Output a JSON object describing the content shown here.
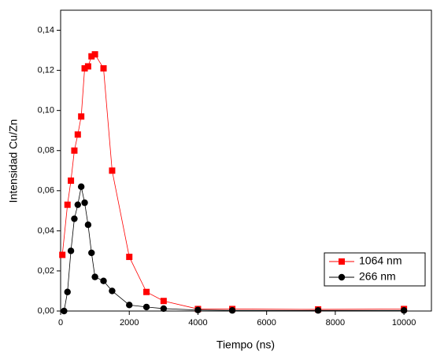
{
  "chart_data": {
    "type": "line",
    "xlabel": "Tiempo (ns)",
    "ylabel": "Intensidad Cu/Zn",
    "xlim": [
      0,
      10800
    ],
    "ylim": [
      0,
      0.15
    ],
    "xticks": [
      0,
      2000,
      4000,
      6000,
      8000,
      10000
    ],
    "yticks": [
      {
        "value": 0,
        "label": "0,00"
      },
      {
        "value": 0.02,
        "label": "0,02"
      },
      {
        "value": 0.04,
        "label": "0,04"
      },
      {
        "value": 0.06,
        "label": "0,06"
      },
      {
        "value": 0.08,
        "label": "0,08"
      },
      {
        "value": 0.1,
        "label": "0,10"
      },
      {
        "value": 0.12,
        "label": "0,12"
      },
      {
        "value": 0.14,
        "label": "0,14"
      }
    ],
    "legend": "lower right",
    "series": [
      {
        "name": "1064 nm",
        "color": "#ff0000",
        "marker": "square",
        "x": [
          50,
          200,
          300,
          400,
          500,
          600,
          700,
          800,
          900,
          1000,
          1250,
          1500,
          2000,
          2500,
          3000,
          4000,
          5000,
          7500,
          10000
        ],
        "values": [
          0.028,
          0.053,
          0.065,
          0.08,
          0.088,
          0.097,
          0.121,
          0.122,
          0.127,
          0.128,
          0.121,
          0.07,
          0.027,
          0.0095,
          0.005,
          0.001,
          0.001,
          0.0008,
          0.001
        ]
      },
      {
        "name": "266 nm",
        "color": "#000000",
        "marker": "circle",
        "x": [
          100,
          200,
          300,
          400,
          500,
          600,
          700,
          800,
          900,
          1000,
          1250,
          1500,
          2000,
          2500,
          3000,
          4000,
          5000,
          7500,
          10000
        ],
        "values": [
          0,
          0.0095,
          0.03,
          0.046,
          0.053,
          0.062,
          0.054,
          0.043,
          0.029,
          0.017,
          0.015,
          0.01,
          0.003,
          0.002,
          0.0012,
          0.0005,
          0.0003,
          0.0003,
          0.0003
        ]
      }
    ]
  }
}
